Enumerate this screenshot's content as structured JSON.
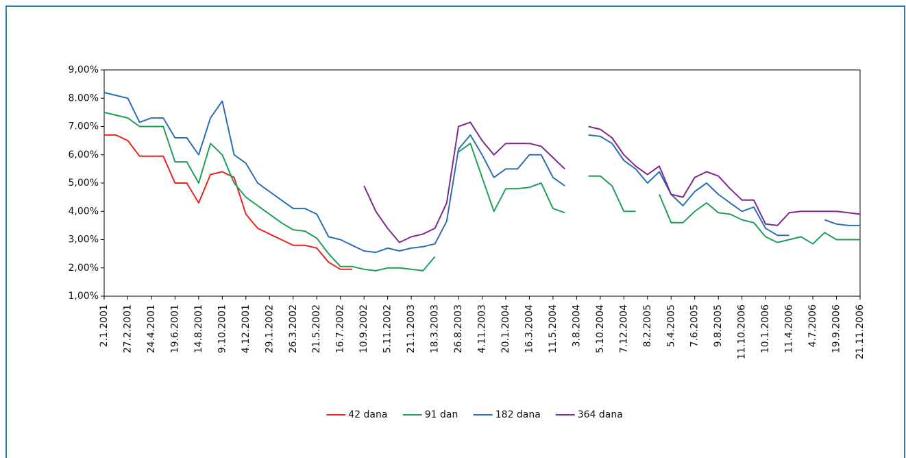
{
  "chart_data": {
    "type": "line",
    "categories": [
      "2.1.2001",
      null,
      "27.2.2001",
      null,
      "24.4.2001",
      null,
      "19.6.2001",
      null,
      "14.8.2001",
      null,
      "9.10.2001",
      null,
      "4.12.2001",
      null,
      "29.1.2002",
      null,
      "26.3.2002",
      null,
      "21.5.2002",
      null,
      "16.7.2002",
      null,
      "10.9.2002",
      null,
      "5.11.2002",
      null,
      "21.1.2003",
      null,
      "18.3.2003",
      null,
      "26.8.2003",
      null,
      "4.11.2003",
      null,
      "20.1.2004",
      null,
      "16.3.2004",
      null,
      "11.5.2004",
      null,
      "3.8.2004",
      null,
      "5.10.2004",
      null,
      "7.12.2004",
      null,
      "8.2.2005",
      null,
      "5.4.2005",
      null,
      "7.6.2005",
      null,
      "9.8.2005",
      null,
      "11.10.2006",
      null,
      "10.1.2006",
      null,
      "11.4.2006",
      null,
      "4.7.2006",
      null,
      "19.9.2006",
      null,
      "21.11.2006"
    ],
    "series": [
      {
        "name": "42 dana",
        "color": "#e8231f",
        "values": [
          6.7,
          6.7,
          6.5,
          5.95,
          5.95,
          5.95,
          5.0,
          5.0,
          4.3,
          5.3,
          5.4,
          5.2,
          3.9,
          3.4,
          3.2,
          3.0,
          2.8,
          2.8,
          2.7,
          2.2,
          1.95,
          1.95,
          null,
          null,
          null,
          null,
          null,
          null,
          null,
          null,
          null,
          null,
          null,
          null,
          null,
          null,
          null,
          null,
          null,
          null,
          null,
          null,
          null,
          null,
          null,
          null,
          null,
          null,
          null,
          null,
          null,
          null,
          null,
          null,
          null,
          null,
          null,
          null,
          null,
          null,
          null,
          null,
          null,
          null,
          null
        ]
      },
      {
        "name": "91 dan",
        "color": "#1e9e5a",
        "values": [
          7.5,
          7.4,
          7.3,
          7.0,
          7.0,
          7.0,
          5.75,
          5.75,
          5.0,
          6.4,
          6.0,
          5.0,
          4.5,
          4.2,
          3.9,
          3.6,
          3.35,
          3.3,
          3.05,
          2.5,
          2.05,
          2.05,
          1.95,
          1.9,
          2.0,
          2.0,
          1.95,
          1.9,
          2.4,
          null,
          6.1,
          6.4,
          5.2,
          4.0,
          4.8,
          4.8,
          4.85,
          5.0,
          4.1,
          3.95,
          null,
          5.25,
          5.25,
          4.9,
          4.0,
          4.0,
          null,
          4.6,
          3.6,
          3.6,
          4.0,
          4.3,
          3.95,
          3.9,
          3.7,
          3.6,
          3.1,
          2.9,
          3.0,
          3.1,
          2.85,
          3.25,
          3.0,
          3.0,
          3.0
        ]
      },
      {
        "name": "182 dana",
        "color": "#2a6db5",
        "values": [
          8.2,
          8.1,
          8.0,
          7.15,
          7.3,
          7.3,
          6.6,
          6.6,
          6.0,
          7.3,
          7.9,
          6.0,
          5.7,
          5.0,
          4.7,
          4.4,
          4.1,
          4.1,
          3.9,
          3.1,
          3.0,
          2.8,
          2.6,
          2.55,
          2.7,
          2.6,
          2.7,
          2.75,
          2.85,
          3.65,
          6.2,
          6.7,
          6.0,
          5.2,
          5.5,
          5.5,
          6.0,
          6.0,
          5.2,
          4.9,
          null,
          6.7,
          6.65,
          6.4,
          5.8,
          5.5,
          5.0,
          5.4,
          4.6,
          4.2,
          4.7,
          5.0,
          4.6,
          4.3,
          4.0,
          4.15,
          3.4,
          3.15,
          3.15,
          null,
          null,
          3.7,
          3.55,
          3.5,
          3.5
        ]
      },
      {
        "name": "364 dana",
        "color": "#7b2a8c",
        "values": [
          null,
          null,
          null,
          null,
          null,
          null,
          null,
          null,
          null,
          null,
          null,
          null,
          null,
          null,
          null,
          null,
          null,
          null,
          null,
          null,
          null,
          null,
          4.9,
          4.0,
          3.4,
          2.9,
          3.1,
          3.2,
          3.4,
          4.3,
          7.0,
          7.15,
          6.5,
          6.0,
          6.4,
          6.4,
          6.4,
          6.3,
          5.9,
          5.5,
          null,
          7.0,
          6.9,
          6.6,
          6.0,
          5.6,
          5.3,
          5.6,
          4.6,
          4.5,
          5.2,
          5.4,
          5.25,
          4.8,
          4.4,
          4.4,
          3.55,
          3.5,
          3.95,
          4.0,
          4.0,
          4.0,
          4.0,
          3.95,
          3.9
        ]
      }
    ],
    "ylim": [
      1,
      9
    ],
    "yticks": [
      {
        "value": 1,
        "label": "1,00%"
      },
      {
        "value": 2,
        "label": "2,00%"
      },
      {
        "value": 3,
        "label": "3,00%"
      },
      {
        "value": 4,
        "label": "4,00%"
      },
      {
        "value": 5,
        "label": "5,00%"
      },
      {
        "value": 6,
        "label": "6,00%"
      },
      {
        "value": 7,
        "label": "7.00%"
      },
      {
        "value": 8,
        "label": "8.00%"
      },
      {
        "value": 9,
        "label": "9,00%"
      }
    ],
    "legend": "bottom"
  }
}
